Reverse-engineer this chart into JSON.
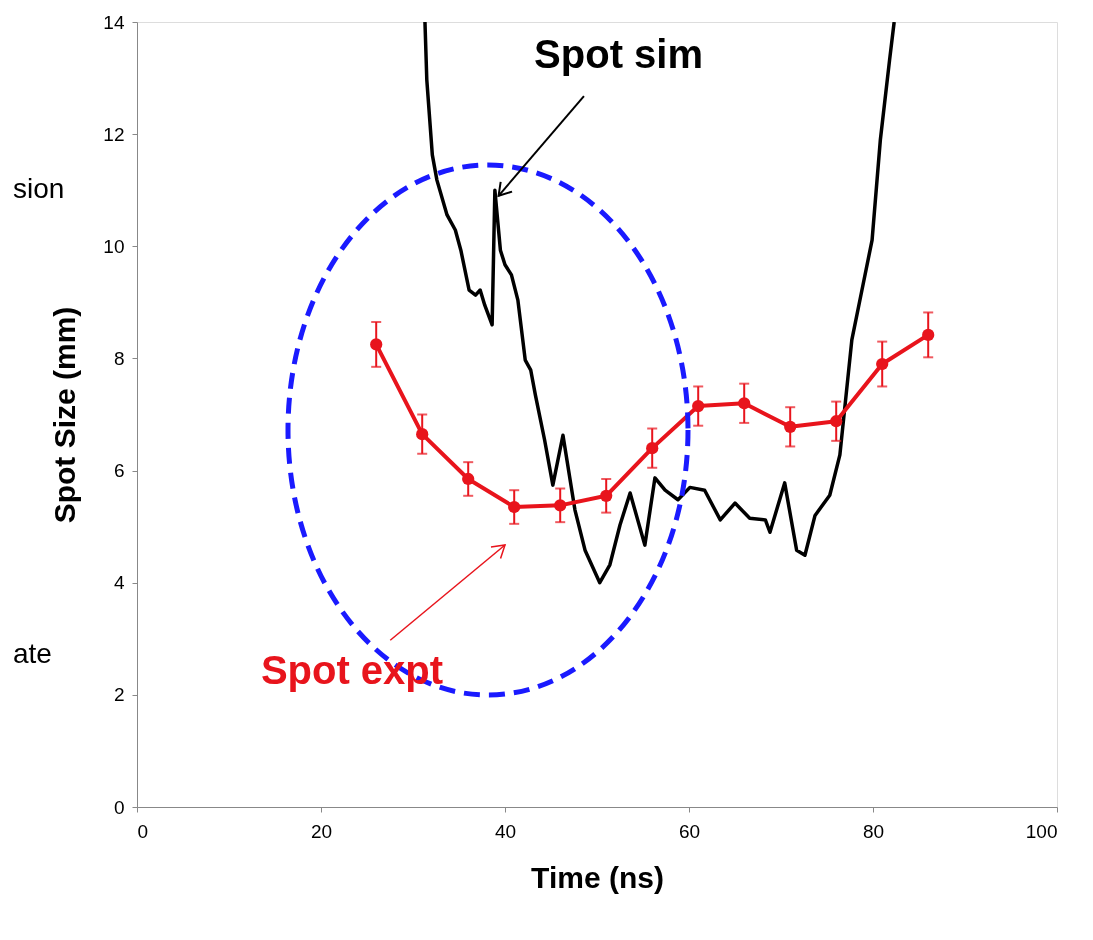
{
  "chart_data": {
    "type": "line",
    "xlabel": "Time (ns)",
    "ylabel": "Spot Size (mm)",
    "xlim": [
      0,
      100
    ],
    "xticks": [
      0,
      20,
      40,
      60,
      80,
      100
    ],
    "ylim": [
      0,
      14
    ],
    "yticks": [
      0,
      2,
      4,
      6,
      8,
      10,
      12,
      14
    ],
    "series": [
      {
        "marker": "none",
        "color": "#000000",
        "x": [
          31.3,
          31.5,
          32.1,
          32.6,
          33.7,
          34.6,
          35.2,
          36.1,
          36.8,
          37.3,
          37.8,
          38.6,
          38.9,
          39.5,
          40.0,
          40.7,
          41.4,
          42.2,
          42.8,
          43.3,
          44.3,
          45.2,
          46.3,
          47.6,
          48.7,
          50.3,
          51.4,
          52.5,
          53.6,
          55.2,
          56.3,
          57.4,
          58.8,
          60.1,
          61.7,
          63.4,
          65.0,
          66.6,
          68.3,
          68.8,
          70.4,
          71.7,
          72.6,
          73.7,
          75.3,
          76.4,
          77.7,
          78.8,
          79.9,
          80.8,
          81.8,
          82.3
        ],
        "values": [
          14.0,
          12.97,
          11.63,
          11.18,
          10.56,
          10.29,
          9.93,
          9.22,
          9.13,
          9.22,
          8.95,
          8.6,
          11.0,
          9.93,
          9.67,
          9.49,
          9.04,
          7.97,
          7.79,
          7.35,
          6.55,
          5.74,
          6.63,
          5.3,
          4.58,
          4.0,
          4.32,
          5.03,
          5.6,
          4.67,
          5.87,
          5.65,
          5.48,
          5.7,
          5.65,
          5.12,
          5.42,
          5.15,
          5.12,
          4.9,
          5.78,
          4.58,
          4.49,
          5.2,
          5.56,
          6.28,
          8.33,
          9.22,
          10.11,
          11.9,
          13.32,
          14.0
        ]
      },
      {
        "marker": "circle",
        "color": "#e8141c",
        "x": [
          26,
          31,
          36,
          41,
          46,
          51,
          56,
          61,
          66,
          71,
          76,
          81,
          86
        ],
        "values": [
          8.25,
          6.65,
          5.85,
          5.35,
          5.38,
          5.55,
          6.4,
          7.15,
          7.2,
          6.78,
          6.88,
          7.9,
          8.42
        ],
        "errors": [
          0.4,
          0.35,
          0.3,
          0.3,
          0.3,
          0.3,
          0.35,
          0.35,
          0.35,
          0.35,
          0.35,
          0.4,
          0.4
        ]
      }
    ],
    "annotations": [
      {
        "text": "Spot sim",
        "x": 39.3,
        "y": 10.9
      },
      "Spot expt",
      "sion",
      "ate"
    ]
  }
}
